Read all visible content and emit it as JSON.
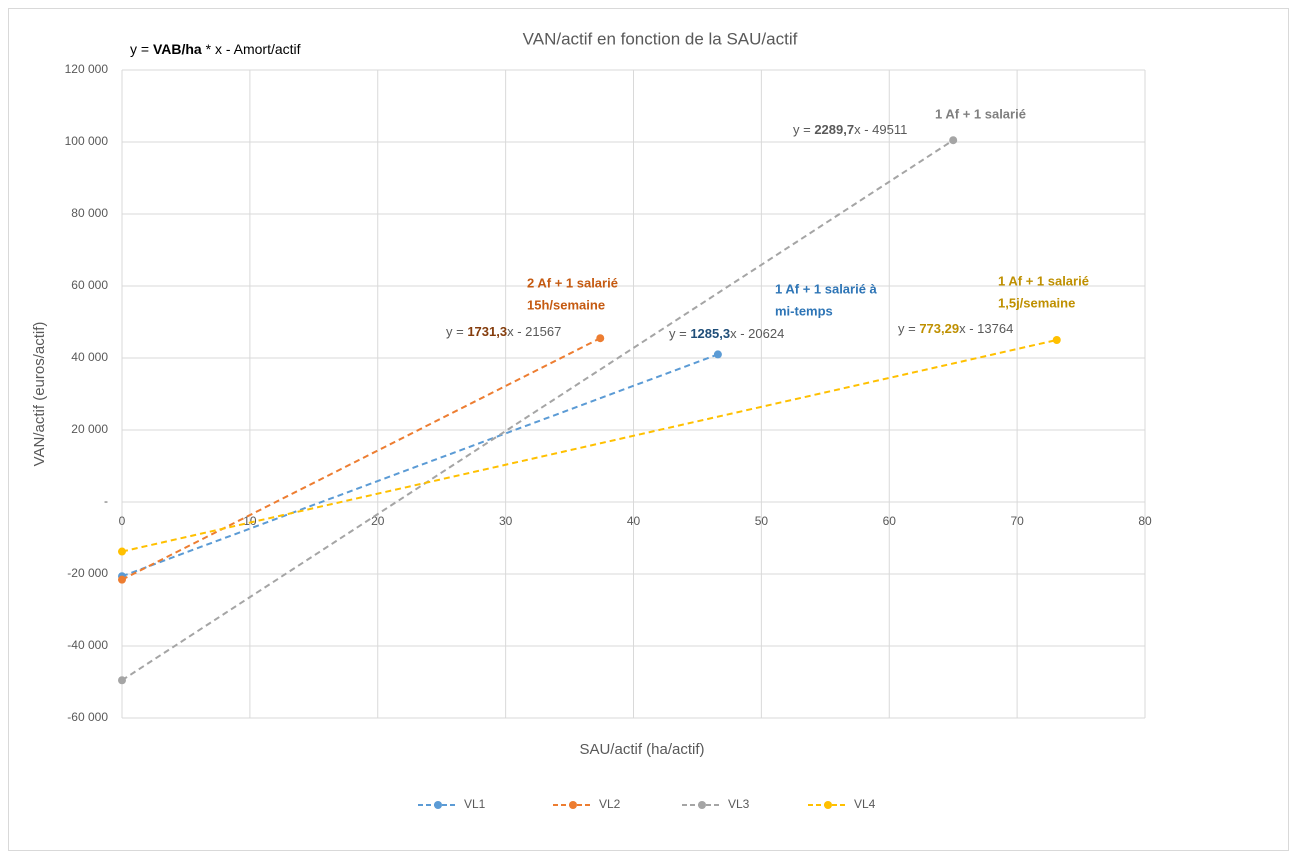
{
  "chart_data": {
    "type": "line",
    "title": "VAN/actif en fonction de la SAU/actif",
    "formula": [
      {
        "text": "y = ",
        "bold": false
      },
      {
        "text": "VAB/ha",
        "bold": true
      },
      {
        "text": " * x - Amort/actif",
        "bold": false
      }
    ],
    "xlabel": "SAU/actif (ha/actif)",
    "ylabel": "VAN/actif (euros/actif)",
    "xlim": [
      0,
      80
    ],
    "xticks": [
      0,
      10,
      20,
      30,
      40,
      50,
      60,
      70,
      80
    ],
    "ylim": [
      -60000,
      120000
    ],
    "yticks": [
      {
        "value": -60000,
        "label": "-60 000"
      },
      {
        "value": -40000,
        "label": "-40 000"
      },
      {
        "value": -20000,
        "label": "-20 000"
      },
      {
        "value": 0,
        "label": "-"
      },
      {
        "value": 20000,
        "label": "20 000"
      },
      {
        "value": 40000,
        "label": "40 000"
      },
      {
        "value": 60000,
        "label": "60 000"
      },
      {
        "value": 80000,
        "label": "80 000"
      },
      {
        "value": 100000,
        "label": "100 000"
      },
      {
        "value": 120000,
        "label": "120 000"
      }
    ],
    "grid": true,
    "legend": "bottom",
    "series": [
      {
        "name": "VL1",
        "color": "#5b9bd5",
        "x": [
          0,
          46.6
        ],
        "values": [
          -20624,
          41000
        ],
        "equation": {
          "prefix": "y = ",
          "coef": "1285,3",
          "suffix": "x - 20624",
          "coef_color": "#1f4e79"
        },
        "label": [
          "1 Af + 1 salarié à",
          "mi-temps"
        ],
        "label_color": "#2e75b6"
      },
      {
        "name": "VL2",
        "color": "#ed7d31",
        "x": [
          0,
          37.4
        ],
        "values": [
          -21567,
          45500
        ],
        "equation": {
          "prefix": "y = ",
          "coef": "1731,3",
          "suffix": "x - 21567",
          "coef_color": "#843c0c"
        },
        "label": [
          "2 Af + 1 salarié",
          "15h/semaine"
        ],
        "label_color": "#c55a11"
      },
      {
        "name": "VL3",
        "color": "#a5a5a5",
        "x": [
          0,
          65
        ],
        "values": [
          -49511,
          100500
        ],
        "equation": {
          "prefix": "y = ",
          "coef": "2289,7",
          "suffix": "x - 49511",
          "coef_color": "#595959"
        },
        "label": [
          "1 Af + 1 salarié"
        ],
        "label_color": "#7f7f7f"
      },
      {
        "name": "VL4",
        "color": "#ffc000",
        "x": [
          0,
          73.1
        ],
        "values": [
          -13764,
          45000
        ],
        "equation": {
          "prefix": "y = ",
          "coef": "773,29",
          "suffix": "x - 13764",
          "coef_color": "#bf9000"
        },
        "label": [
          "1 Af + 1 salarié",
          "1,5j/semaine"
        ],
        "label_color": "#bf9000"
      }
    ]
  }
}
